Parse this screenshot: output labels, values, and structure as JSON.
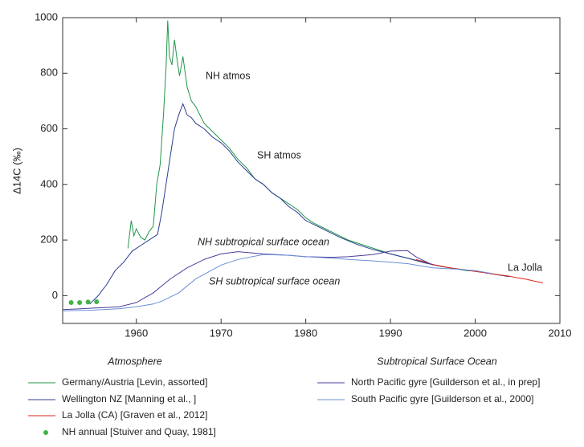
{
  "chart_data": {
    "type": "line",
    "y_label": "Δ14C (‰)",
    "xlim": [
      1951.3,
      2010
    ],
    "ylim": [
      -100,
      1000
    ],
    "xticks": [
      1960,
      1970,
      1980,
      1990,
      2000,
      2010
    ],
    "yticks": [
      0,
      200,
      400,
      600,
      800,
      1000
    ],
    "series": [
      {
        "name": "Germany/Austria  [Levin, assorted]",
        "color": "#22964a",
        "x": [
          1959,
          1959.4,
          1959.7,
          1960,
          1960.5,
          1961,
          1961.5,
          1962,
          1962.4,
          1962.8,
          1963.2,
          1963.5,
          1963.7,
          1963.9,
          1964.2,
          1964.5,
          1964.8,
          1965.1,
          1965.5,
          1966,
          1966.5,
          1967,
          1968,
          1969,
          1970,
          1971,
          1972,
          1973,
          1974,
          1975,
          1976,
          1977,
          1978,
          1979,
          1980,
          1981,
          1982,
          1983,
          1984,
          1985,
          1986,
          1987,
          1988,
          1989,
          1990,
          1991,
          1992,
          1993,
          1994,
          1995,
          1996,
          1997,
          1998,
          1999,
          2000,
          2001,
          2002,
          2003,
          2004
        ],
        "values": [
          170,
          270,
          215,
          240,
          210,
          200,
          230,
          250,
          400,
          470,
          650,
          820,
          990,
          860,
          830,
          920,
          850,
          790,
          860,
          750,
          700,
          680,
          620,
          590,
          560,
          530,
          490,
          460,
          420,
          400,
          370,
          350,
          330,
          310,
          280,
          260,
          245,
          230,
          215,
          200,
          190,
          180,
          170,
          160,
          150,
          142,
          135,
          127,
          120,
          112,
          105,
          100,
          95,
          90,
          88,
          84,
          78,
          74,
          70
        ]
      },
      {
        "name": "Wellington NZ [Manning et al., ]",
        "color": "#2c3c92",
        "x": [
          1954.5,
          1955.5,
          1956.5,
          1957.5,
          1958.5,
          1959.5,
          1960.5,
          1961.5,
          1962.5,
          1963,
          1963.5,
          1964,
          1964.5,
          1965,
          1965.5,
          1966,
          1966.5,
          1967,
          1968,
          1969,
          1970,
          1971,
          1972,
          1973,
          1974,
          1975,
          1976,
          1977,
          1978,
          1979,
          1980,
          1982,
          1984,
          1986,
          1988,
          1990,
          1992,
          1994,
          1996,
          1998,
          2000,
          2002,
          2004
        ],
        "values": [
          -30,
          0,
          40,
          90,
          120,
          160,
          180,
          200,
          220,
          300,
          400,
          500,
          600,
          650,
          690,
          650,
          640,
          620,
          600,
          570,
          550,
          520,
          480,
          450,
          420,
          400,
          370,
          350,
          320,
          300,
          270,
          240,
          210,
          185,
          165,
          150,
          135,
          118,
          105,
          95,
          88,
          78,
          68
        ]
      },
      {
        "name": "La Jolla (CA) [Graven et al., 2012]",
        "color": "#e0231c",
        "x": [
          1993,
          1994,
          1995,
          1996,
          1997,
          1998,
          1999,
          2000,
          2001,
          2002,
          2003,
          2004,
          2005,
          2006,
          2007,
          2008
        ],
        "values": [
          130,
          122,
          112,
          106,
          100,
          96,
          92,
          87,
          83,
          78,
          74,
          70,
          64,
          59,
          52,
          46
        ]
      },
      {
        "name": "NH annual [Stuiver and Quay, 1981]",
        "color": "#3fb449",
        "mode": "markers",
        "x": [
          1952.3,
          1953.3,
          1954.3,
          1955.3
        ],
        "values": [
          -25,
          -25,
          -23,
          -22
        ]
      },
      {
        "name": "North Pacific gyre [Guilderson et al., in prep]",
        "color": "#4a3d9c",
        "x": [
          1951.3,
          1953,
          1955,
          1957,
          1958,
          1960,
          1962,
          1964,
          1966,
          1968,
          1970,
          1972,
          1975,
          1978,
          1980,
          1983,
          1985,
          1988,
          1990,
          1992,
          1993,
          1995
        ],
        "values": [
          -50,
          -48,
          -45,
          -42,
          -40,
          -25,
          10,
          60,
          100,
          130,
          150,
          158,
          150,
          145,
          140,
          138,
          140,
          148,
          160,
          162,
          140,
          110
        ]
      },
      {
        "name": "South Pacific  gyre [Guilderson et al., 2000]",
        "color": "#6b8ed6",
        "x": [
          1951.3,
          1955,
          1958,
          1960,
          1962,
          1963,
          1965,
          1967,
          1970,
          1972,
          1975,
          1978,
          1980,
          1983,
          1985,
          1988,
          1990,
          1992,
          1995,
          1998,
          2000,
          2002
        ],
        "values": [
          -55,
          -52,
          -47,
          -40,
          -30,
          -20,
          10,
          60,
          110,
          130,
          148,
          145,
          140,
          135,
          130,
          125,
          120,
          115,
          100,
          95,
          90,
          80
        ]
      }
    ],
    "annotations": [
      {
        "text": "NH atmos",
        "color": "#22964a"
      },
      {
        "text": "SH atmos",
        "color": "#2c3c92"
      },
      {
        "text": "NH subtropical surface ocean",
        "color": "#4a3d9c"
      },
      {
        "text": "SH subtropical surface ocean",
        "color": "#4f7cd0"
      },
      {
        "text": "La Jolla",
        "color": "#e0231c"
      }
    ],
    "section_labels": [
      "Atmosphere",
      "Subtropical Surface Ocean"
    ]
  }
}
